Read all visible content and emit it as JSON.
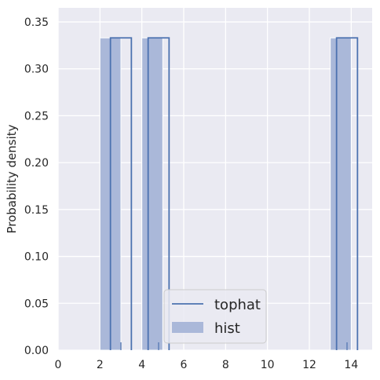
{
  "chart_data": {
    "type": "bar",
    "title": "",
    "xlabel": "",
    "ylabel": "Probability density",
    "xlim": [
      0,
      15
    ],
    "ylim": [
      0,
      0.365
    ],
    "xticks": [
      0,
      2,
      4,
      6,
      8,
      10,
      12,
      14
    ],
    "yticks": [
      0.0,
      0.05,
      0.1,
      0.15,
      0.2,
      0.25,
      0.3,
      0.35
    ],
    "ytick_labels": [
      "0.00",
      "0.05",
      "0.10",
      "0.15",
      "0.20",
      "0.25",
      "0.30",
      "0.35"
    ],
    "grid": true,
    "legend_position": "bottom-center",
    "hist": {
      "name": "hist",
      "bins": [
        {
          "x0": 2.0,
          "x1": 3.0,
          "value": 0.333
        },
        {
          "x0": 4.0,
          "x1": 5.0,
          "value": 0.333
        },
        {
          "x0": 13.0,
          "x1": 14.0,
          "value": 0.333
        }
      ]
    },
    "tophat": {
      "name": "tophat",
      "segments": [
        {
          "x0": 2.5,
          "x1": 3.5,
          "value": 0.333
        },
        {
          "x0": 4.3,
          "x1": 5.3,
          "value": 0.333
        },
        {
          "x0": 13.3,
          "x1": 14.3,
          "value": 0.333
        }
      ]
    },
    "rug": [
      3.0,
      4.8,
      13.8
    ],
    "legend": [
      "tophat",
      "hist"
    ]
  },
  "colors": {
    "background": "#eaeaf2",
    "grid": "#ffffff",
    "hist_fill": "#aab8d9",
    "hist_edge": "#ffffff",
    "line": "#4c72b0",
    "text": "#262626"
  }
}
